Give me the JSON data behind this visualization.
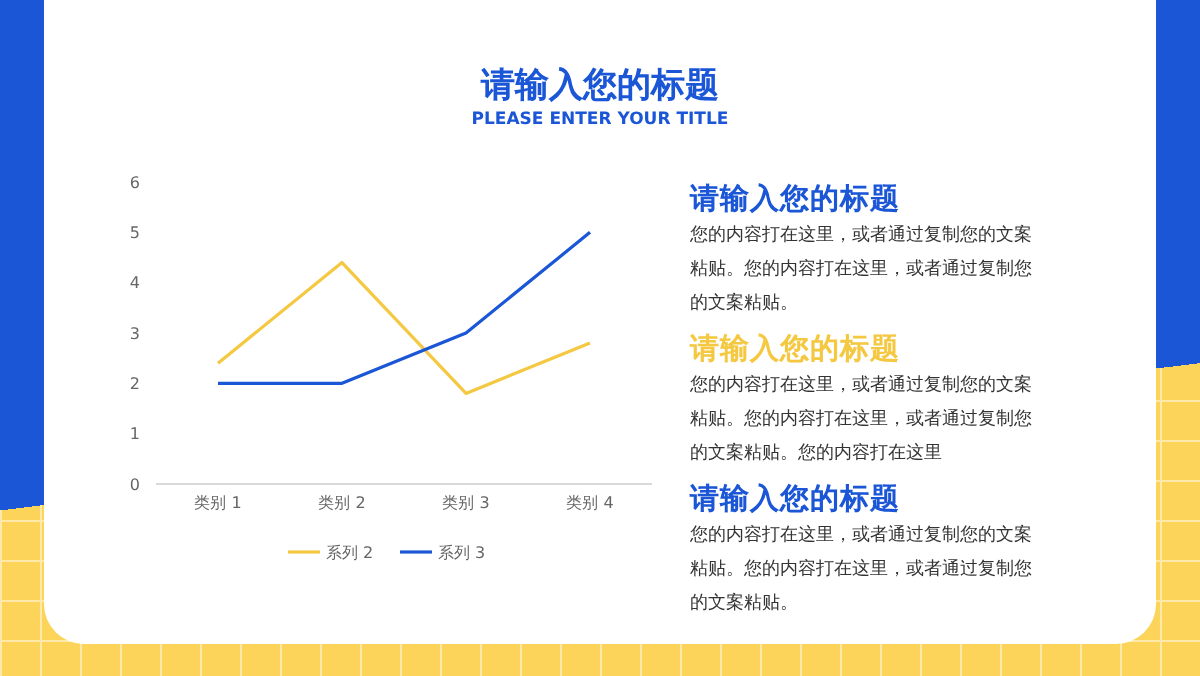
{
  "chart_data": [
    {
      "type": "line",
      "title": "请输入您的标题",
      "subtitle": "PLEASE ENTER YOUR TITLE",
      "categories": [
        "类别 1",
        "类别 2",
        "类别 3",
        "类别 4"
      ],
      "series": [
        {
          "name": "系列 2",
          "color": "#f5c842",
          "values": [
            2.4,
            4.4,
            1.8,
            2.8
          ]
        },
        {
          "name": "系列 3",
          "color": "#1a56d6",
          "values": [
            2,
            2,
            3,
            5
          ]
        }
      ],
      "ylim": [
        0,
        6
      ],
      "yticks": [
        0,
        1,
        2,
        3,
        4,
        5,
        6
      ],
      "legend": "bottom",
      "line_style": "solid",
      "marker": "none"
    },
    {
      "type": "other",
      "annotations": [
        "请输入您的标题",
        "您的内容打在这里，或者通过复制您的文案粘贴。您的内容打在这里，或者通过复制您的文案粘贴。",
        "请输入您的标题",
        "您的内容打在这里，或者通过复制您的文案粘贴。您的内容打在这里，或者通过复制您的文案粘贴。您的内容打在这里",
        "请输入您的标题",
        "您的内容打在这里，或者通过复制您的文案粘贴。您的内容打在这里，或者通过复制您的文案粘贴。"
      ]
    }
  ]
}
